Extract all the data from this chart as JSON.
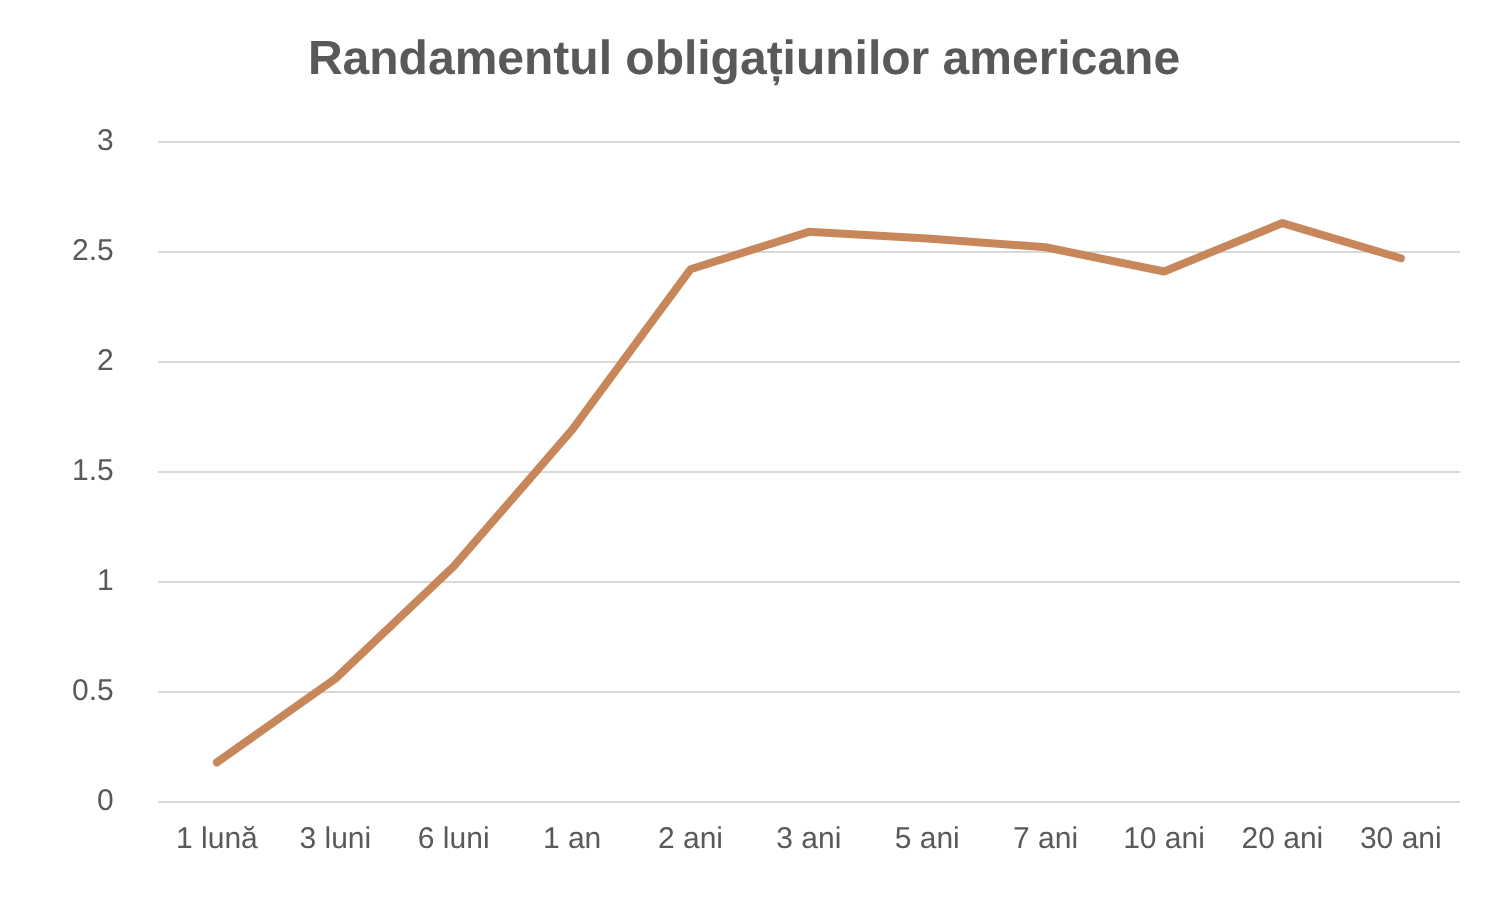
{
  "chart_data": {
    "type": "line",
    "title": "Randamentul obligațiunilor americane",
    "categories": [
      "1 lună",
      "3 luni",
      "6 luni",
      "1 an",
      "2 ani",
      "3 ani",
      "5 ani",
      "7 ani",
      "10 ani",
      "20 ani",
      "30 ani"
    ],
    "series": [
      {
        "color": "#c8875a",
        "values": [
          0.18,
          0.56,
          1.07,
          1.69,
          2.42,
          2.59,
          2.56,
          2.52,
          2.41,
          2.63,
          2.47
        ]
      }
    ],
    "ylim": [
      0,
      3
    ],
    "yticks": [
      0,
      0.5,
      1,
      1.5,
      2,
      2.5,
      3
    ],
    "grid": "y",
    "legend": false,
    "marker": "none",
    "line_style": "solid"
  }
}
